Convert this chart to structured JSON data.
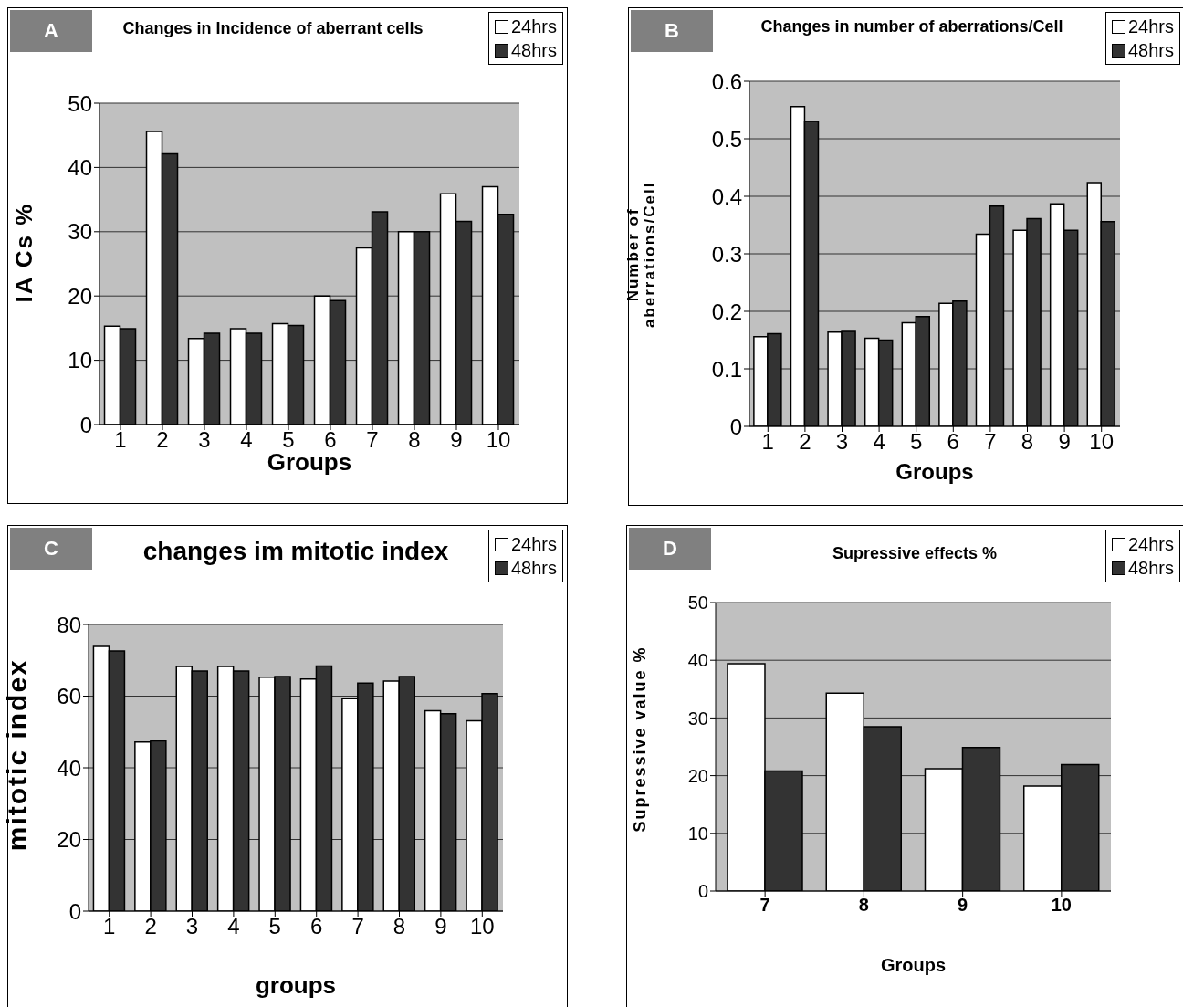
{
  "chart_data": [
    {
      "type": "bar",
      "title": "Changes in Incidence of aberrant cells",
      "xlabel": "Groups",
      "ylabel": "IA Cs %",
      "annotations": [
        "A"
      ],
      "categories": [
        "1",
        "2",
        "3",
        "4",
        "5",
        "6",
        "7",
        "8",
        "9",
        "10"
      ],
      "series": [
        {
          "name": "24hrs",
          "color": "#ffffff",
          "values": [
            15.3,
            45.6,
            13.4,
            14.9,
            15.7,
            20,
            27.5,
            30,
            35.9,
            37
          ]
        },
        {
          "name": "48hrs",
          "color": "#333333",
          "values": [
            14.9,
            42.1,
            14.2,
            14.2,
            15.4,
            19.3,
            33.1,
            30,
            31.6,
            32.7
          ]
        }
      ],
      "ylim": [
        0,
        50
      ],
      "yticks": [
        0,
        10,
        20,
        30,
        40,
        50
      ],
      "grid": "y",
      "legend": "top right"
    },
    {
      "type": "bar",
      "title": "Changes in number of aberrations/Cell",
      "xlabel": "Groups",
      "ylabel": "Number of aberrations/Cell",
      "annotations": [
        "B"
      ],
      "categories": [
        "1",
        "2",
        "3",
        "4",
        "5",
        "6",
        "7",
        "8",
        "9",
        "10"
      ],
      "series": [
        {
          "name": "24hrs",
          "color": "#ffffff",
          "values": [
            0.156,
            0.556,
            0.164,
            0.153,
            0.18,
            0.214,
            0.334,
            0.341,
            0.387,
            0.424
          ]
        },
        {
          "name": "48hrs",
          "color": "#333333",
          "values": [
            0.161,
            0.53,
            0.165,
            0.15,
            0.191,
            0.218,
            0.383,
            0.361,
            0.341,
            0.356
          ]
        }
      ],
      "ylim": [
        0,
        0.6
      ],
      "yticks": [
        0,
        0.1,
        0.2,
        0.3,
        0.4,
        0.5,
        0.6
      ],
      "grid": "y",
      "legend": "top right"
    },
    {
      "type": "bar",
      "title": "changes im mitotic index",
      "xlabel": "groups",
      "ylabel": "mitotic index",
      "annotations": [
        "C"
      ],
      "categories": [
        "1",
        "2",
        "3",
        "4",
        "5",
        "6",
        "7",
        "8",
        "9",
        "10"
      ],
      "series": [
        {
          "name": "24hrs",
          "color": "#ffffff",
          "values": [
            73.9,
            47.2,
            68.3,
            68.3,
            65.3,
            64.8,
            59.3,
            64.2,
            55.9,
            53.1
          ]
        },
        {
          "name": "48hrs",
          "color": "#333333",
          "values": [
            72.6,
            47.5,
            67,
            67,
            65.5,
            68.4,
            63.6,
            65.5,
            55.1,
            60.7
          ]
        }
      ],
      "ylim": [
        0,
        80
      ],
      "yticks": [
        0,
        20,
        40,
        60,
        80
      ],
      "grid": "y",
      "legend": "top right"
    },
    {
      "type": "bar",
      "title": "Supressive effects  %",
      "xlabel": "Groups",
      "ylabel": "Supressive value %",
      "annotations": [
        "D"
      ],
      "categories": [
        "7",
        "8",
        "9",
        "10"
      ],
      "series": [
        {
          "name": "24hrs",
          "color": "#ffffff",
          "values": [
            39.4,
            34.3,
            21.2,
            18.2
          ]
        },
        {
          "name": "48hrs",
          "color": "#333333",
          "values": [
            20.8,
            28.5,
            24.9,
            21.9
          ]
        }
      ],
      "ylim": [
        0,
        50
      ],
      "yticks": [
        0,
        10,
        20,
        30,
        40,
        50
      ],
      "grid": "y",
      "legend": "top right"
    }
  ]
}
